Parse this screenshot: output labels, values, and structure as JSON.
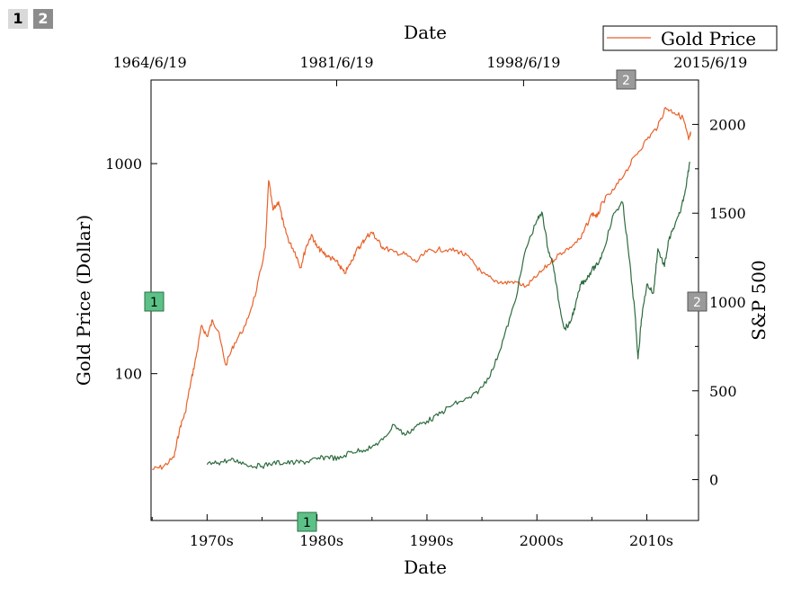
{
  "layer_tabs": [
    "1",
    "2"
  ],
  "chart_data": {
    "type": "line",
    "title": "",
    "top_axis": {
      "label": "Date",
      "tick_labels": [
        "1964/6/19",
        "1981/6/19",
        "1998/6/19",
        "2015/6/19"
      ]
    },
    "bottom_axis": {
      "label": "Date",
      "tick_labels": [
        "1970s",
        "1980s",
        "1990s",
        "2000s",
        "2010s"
      ],
      "xlim": [
        1964.9,
        2014.7
      ]
    },
    "left_axis": {
      "label": "Gold Price (Dollar)",
      "scale": "log",
      "ylim": [
        20,
        2500
      ],
      "ticks": [
        100,
        1000
      ],
      "tick_labels": [
        "100",
        "1000"
      ]
    },
    "right_axis": {
      "label": "S&P 500",
      "ylim": [
        -230,
        2250
      ],
      "ticks": [
        0,
        500,
        1000,
        1500,
        2000
      ],
      "tick_labels": [
        "0",
        "500",
        "1000",
        "1500",
        "2000"
      ]
    },
    "layer_markers": {
      "left": "1",
      "bottom": "1",
      "right": "2",
      "top": "2"
    },
    "legend": {
      "position": "top-right",
      "entries": [
        "Gold Price"
      ]
    },
    "series": [
      {
        "name": "Gold Price",
        "axis": "left",
        "color": "#e8622a",
        "points": [
          [
            1965.0,
            35
          ],
          [
            1966.0,
            36
          ],
          [
            1967.0,
            40
          ],
          [
            1967.5,
            55
          ],
          [
            1968.0,
            65
          ],
          [
            1968.5,
            90
          ],
          [
            1969.0,
            120
          ],
          [
            1969.5,
            170
          ],
          [
            1970.0,
            150
          ],
          [
            1970.5,
            180
          ],
          [
            1971.0,
            160
          ],
          [
            1971.7,
            110
          ],
          [
            1972.5,
            140
          ],
          [
            1973.5,
            170
          ],
          [
            1974.5,
            250
          ],
          [
            1975.3,
            400
          ],
          [
            1975.6,
            830
          ],
          [
            1976.0,
            600
          ],
          [
            1976.5,
            660
          ],
          [
            1977.0,
            500
          ],
          [
            1977.5,
            420
          ],
          [
            1978.0,
            380
          ],
          [
            1978.5,
            320
          ],
          [
            1979.0,
            400
          ],
          [
            1979.5,
            460
          ],
          [
            1980.0,
            400
          ],
          [
            1980.5,
            380
          ],
          [
            1981.0,
            360
          ],
          [
            1981.5,
            350
          ],
          [
            1982.0,
            330
          ],
          [
            1982.5,
            300
          ],
          [
            1983.0,
            330
          ],
          [
            1983.5,
            380
          ],
          [
            1984.0,
            410
          ],
          [
            1984.5,
            450
          ],
          [
            1985.0,
            470
          ],
          [
            1985.5,
            430
          ],
          [
            1986.0,
            400
          ],
          [
            1987.0,
            380
          ],
          [
            1988.0,
            370
          ],
          [
            1989.0,
            340
          ],
          [
            1990.0,
            380
          ],
          [
            1991.0,
            390
          ],
          [
            1992.0,
            390
          ],
          [
            1993.0,
            380
          ],
          [
            1994.0,
            350
          ],
          [
            1995.0,
            300
          ],
          [
            1996.0,
            280
          ],
          [
            1997.0,
            270
          ],
          [
            1998.0,
            275
          ],
          [
            1999.0,
            260
          ],
          [
            2000.0,
            290
          ],
          [
            2001.0,
            330
          ],
          [
            2002.0,
            370
          ],
          [
            2003.0,
            400
          ],
          [
            2004.0,
            440
          ],
          [
            2005.0,
            580
          ],
          [
            2005.5,
            560
          ],
          [
            2006.0,
            660
          ],
          [
            2007.0,
            750
          ],
          [
            2008.0,
            900
          ],
          [
            2009.0,
            1100
          ],
          [
            2010.0,
            1300
          ],
          [
            2011.0,
            1500
          ],
          [
            2011.7,
            1850
          ],
          [
            2012.5,
            1750
          ],
          [
            2013.3,
            1650
          ],
          [
            2013.8,
            1300
          ],
          [
            2014.0,
            1400
          ]
        ]
      },
      {
        "name": "",
        "axis": "right",
        "color": "#2e6b3f",
        "points": [
          [
            1970.0,
            85
          ],
          [
            1971.0,
            95
          ],
          [
            1972.0,
            110
          ],
          [
            1973.0,
            100
          ],
          [
            1974.0,
            80
          ],
          [
            1975.0,
            75
          ],
          [
            1976.0,
            95
          ],
          [
            1977.0,
            95
          ],
          [
            1978.0,
            95
          ],
          [
            1979.0,
            100
          ],
          [
            1980.0,
            115
          ],
          [
            1981.0,
            130
          ],
          [
            1982.0,
            115
          ],
          [
            1983.0,
            155
          ],
          [
            1984.0,
            165
          ],
          [
            1985.0,
            185
          ],
          [
            1986.0,
            225
          ],
          [
            1987.0,
            310
          ],
          [
            1988.0,
            250
          ],
          [
            1989.0,
            300
          ],
          [
            1990.0,
            330
          ],
          [
            1991.0,
            360
          ],
          [
            1992.0,
            410
          ],
          [
            1993.0,
            440
          ],
          [
            1994.0,
            460
          ],
          [
            1995.0,
            520
          ],
          [
            1996.0,
            620
          ],
          [
            1997.0,
            800
          ],
          [
            1998.0,
            1000
          ],
          [
            1999.0,
            1300
          ],
          [
            2000.0,
            1460
          ],
          [
            2000.5,
            1500
          ],
          [
            2001.0,
            1300
          ],
          [
            2001.5,
            1200
          ],
          [
            2002.0,
            1000
          ],
          [
            2002.5,
            850
          ],
          [
            2003.0,
            880
          ],
          [
            2003.5,
            980
          ],
          [
            2004.0,
            1100
          ],
          [
            2004.5,
            1130
          ],
          [
            2005.0,
            1180
          ],
          [
            2005.5,
            1210
          ],
          [
            2006.0,
            1280
          ],
          [
            2007.0,
            1500
          ],
          [
            2007.8,
            1560
          ],
          [
            2008.3,
            1300
          ],
          [
            2008.9,
            950
          ],
          [
            2009.2,
            680
          ],
          [
            2009.5,
            900
          ],
          [
            2010.0,
            1100
          ],
          [
            2010.6,
            1050
          ],
          [
            2011.0,
            1300
          ],
          [
            2011.6,
            1200
          ],
          [
            2012.0,
            1350
          ],
          [
            2012.5,
            1420
          ],
          [
            2013.0,
            1500
          ],
          [
            2013.5,
            1630
          ],
          [
            2013.9,
            1790
          ]
        ]
      }
    ]
  }
}
